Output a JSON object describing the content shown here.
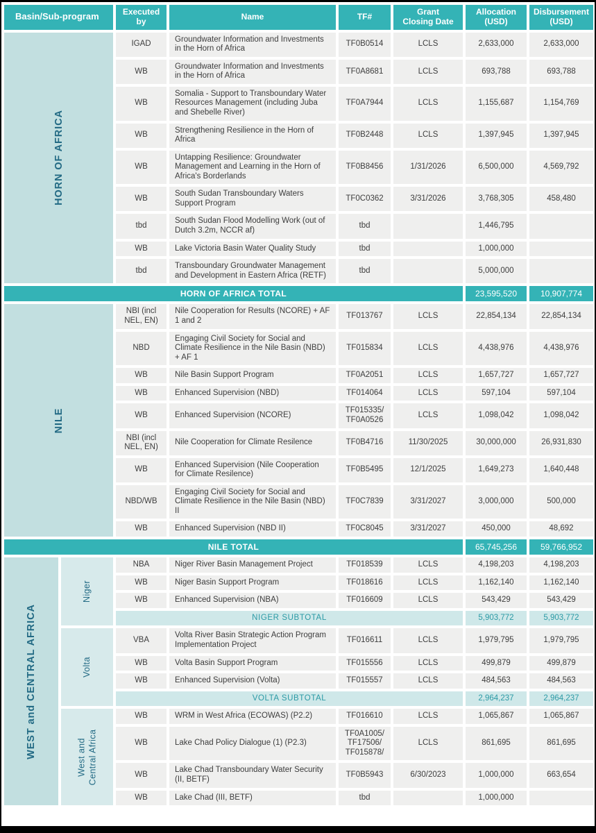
{
  "colors": {
    "teal": "#34b3b6",
    "cell_bg": "#efefee",
    "basin_bg": "#c2dfe0",
    "sub_bg": "#d7eaeb",
    "subtotal_bg": "#cfe8e9",
    "basin_text": "#226a84",
    "subtotal_text": "#2b9aa5",
    "header_text": "#ffffff"
  },
  "table": {
    "columns": [
      "Basin/Sub-program",
      "Executed\nby",
      "Name",
      "TF#",
      "Grant\nClosing Date",
      "Allocation\n(USD)",
      "Disbursement\n(USD)"
    ],
    "sections": [
      {
        "basin": "HORN OF AFRICA",
        "rows": [
          {
            "executed_by": "IGAD",
            "name": "Groundwater Information and Investments in the Horn of Africa",
            "tf": "TF0B0514",
            "closing_date": "LCLS",
            "allocation": "2,633,000",
            "disbursement": "2,633,000"
          },
          {
            "executed_by": "WB",
            "name": "Groundwater Information and Investments in the Horn of Africa",
            "tf": "TF0A8681",
            "closing_date": "LCLS",
            "allocation": "693,788",
            "disbursement": "693,788"
          },
          {
            "executed_by": "WB",
            "name": "Somalia - Support to Transboundary Water Resources Management (including Juba and Shebelle River)",
            "tf": "TF0A7944",
            "closing_date": "LCLS",
            "allocation": "1,155,687",
            "disbursement": "1,154,769"
          },
          {
            "executed_by": "WB",
            "name": "Strengthening Resilience in the Horn of Africa",
            "tf": "TF0B2448",
            "closing_date": "LCLS",
            "allocation": "1,397,945",
            "disbursement": "1,397,945"
          },
          {
            "executed_by": "WB",
            "name": "Untapping Resilience: Groundwater Management and Learning in the Horn of Africa's Borderlands",
            "tf": "TF0B8456",
            "closing_date": "1/31/2026",
            "allocation": "6,500,000",
            "disbursement": "4,569,792"
          },
          {
            "executed_by": "WB",
            "name": "South Sudan Transboundary Waters Support Program",
            "tf": "TF0C0362",
            "closing_date": "3/31/2026",
            "allocation": "3,768,305",
            "disbursement": "458,480"
          },
          {
            "executed_by": "tbd",
            "name": "South Sudan Flood Modelling Work (out of Dutch 3.2m, NCCR af)",
            "tf": "tbd",
            "closing_date": "",
            "allocation": "1,446,795",
            "disbursement": ""
          },
          {
            "executed_by": "WB",
            "name": "Lake Victoria Basin Water Quality Study",
            "tf": "tbd",
            "closing_date": "",
            "allocation": "1,000,000",
            "disbursement": ""
          },
          {
            "executed_by": "tbd",
            "name": "Transboundary Groundwater Management and Development in Eastern Africa (RETF)",
            "tf": "tbd",
            "closing_date": "",
            "allocation": "5,000,000",
            "disbursement": ""
          }
        ],
        "total": {
          "label": "HORN OF AFRICA TOTAL",
          "allocation": "23,595,520",
          "disbursement": "10,907,774"
        }
      },
      {
        "basin": "NILE",
        "rows": [
          {
            "executed_by": "NBI (incl NEL, EN)",
            "name": "Nile Cooperation for Results (NCORE) + AF 1 and 2",
            "tf": "TF013767",
            "closing_date": "LCLS",
            "allocation": "22,854,134",
            "disbursement": "22,854,134"
          },
          {
            "executed_by": "NBD",
            "name": "Engaging Civil Society for Social and Climate Resilience in the Nile Basin (NBD) + AF 1",
            "tf": "TF015834",
            "closing_date": "LCLS",
            "allocation": "4,438,976",
            "disbursement": "4,438,976"
          },
          {
            "executed_by": "WB",
            "name": "Nile Basin Support Program",
            "tf": "TF0A2051",
            "closing_date": "LCLS",
            "allocation": "1,657,727",
            "disbursement": "1,657,727"
          },
          {
            "executed_by": "WB",
            "name": "Enhanced Supervision (NBD)",
            "tf": "TF014064",
            "closing_date": "LCLS",
            "allocation": "597,104",
            "disbursement": "597,104"
          },
          {
            "executed_by": "WB",
            "name": "Enhanced Supervision (NCORE)",
            "tf": "TF015335/\nTF0A0526",
            "closing_date": "LCLS",
            "allocation": "1,098,042",
            "disbursement": "1,098,042"
          },
          {
            "executed_by": "NBI (incl NEL, EN)",
            "name": "Nile Cooperation for Climate Resilence",
            "tf": "TF0B4716",
            "closing_date": "11/30/2025",
            "allocation": "30,000,000",
            "disbursement": "26,931,830"
          },
          {
            "executed_by": "WB",
            "name": "Enhanced Supervision (Nile Cooperation for Climate Resilence)",
            "tf": "TF0B5495",
            "closing_date": "12/1/2025",
            "allocation": "1,649,273",
            "disbursement": "1,640,448"
          },
          {
            "executed_by": "NBD/WB",
            "name": "Engaging Civil Society for Social and Climate Resilience in the Nile Basin (NBD) II",
            "tf": "TF0C7839",
            "closing_date": "3/31/2027",
            "allocation": "3,000,000",
            "disbursement": "500,000"
          },
          {
            "executed_by": "WB",
            "name": "Enhanced Supervision (NBD II)",
            "tf": "TF0C8045",
            "closing_date": "3/31/2027",
            "allocation": "450,000",
            "disbursement": "48,692"
          }
        ],
        "total": {
          "label": "NILE TOTAL",
          "allocation": "65,745,256",
          "disbursement": "59,766,952"
        }
      },
      {
        "basin": "WEST and CENTRAL AFRICA",
        "subsections": [
          {
            "label": "Niger",
            "rows": [
              {
                "executed_by": "NBA",
                "name": "Niger River Basin Management Project",
                "tf": "TF018539",
                "closing_date": "LCLS",
                "allocation": "4,198,203",
                "disbursement": "4,198,203"
              },
              {
                "executed_by": "WB",
                "name": "Niger Basin Support Program",
                "tf": "TF018616",
                "closing_date": "LCLS",
                "allocation": "1,162,140",
                "disbursement": "1,162,140"
              },
              {
                "executed_by": "WB",
                "name": "Enhanced Supervision (NBA)",
                "tf": "TF016609",
                "closing_date": "LCLS",
                "allocation": "543,429",
                "disbursement": "543,429"
              }
            ],
            "subtotal": {
              "label": "NIGER SUBTOTAL",
              "allocation": "5,903,772",
              "disbursement": "5,903,772"
            }
          },
          {
            "label": "Volta",
            "rows": [
              {
                "executed_by": "VBA",
                "name": "Volta River Basin Strategic Action Program Implementation Project",
                "tf": "TF016611",
                "closing_date": "LCLS",
                "allocation": "1,979,795",
                "disbursement": "1,979,795"
              },
              {
                "executed_by": "WB",
                "name": "Volta Basin Support Program",
                "tf": "TF015556",
                "closing_date": "LCLS",
                "allocation": "499,879",
                "disbursement": "499,879"
              },
              {
                "executed_by": "WB",
                "name": "Enhanced Supervision (Volta)",
                "tf": "TF015557",
                "closing_date": "LCLS",
                "allocation": "484,563",
                "disbursement": "484,563"
              }
            ],
            "subtotal": {
              "label": "VOLTA SUBTOTAL",
              "allocation": "2,964,237",
              "disbursement": "2,964,237"
            }
          },
          {
            "label": "West and\nCentral Africa",
            "rows": [
              {
                "executed_by": "WB",
                "name": "WRM in West Africa (ECOWAS) (P2.2)",
                "tf": "TF016610",
                "closing_date": "LCLS",
                "allocation": "1,065,867",
                "disbursement": "1,065,867"
              },
              {
                "executed_by": "WB",
                "name": "Lake Chad Policy Dialogue (1) (P2.3)",
                "tf": "TF0A1005/\nTF17506/\nTF015878/",
                "closing_date": "LCLS",
                "allocation": "861,695",
                "disbursement": "861,695"
              },
              {
                "executed_by": "WB",
                "name": "Lake Chad Transboundary Water Security (II, BETF)",
                "tf": "TF0B5943",
                "closing_date": "6/30/2023",
                "allocation": "1,000,000",
                "disbursement": "663,654"
              },
              {
                "executed_by": "WB",
                "name": "Lake Chad (III, BETF)",
                "tf": "tbd",
                "closing_date": "",
                "allocation": "1,000,000",
                "disbursement": ""
              }
            ]
          }
        ]
      }
    ]
  }
}
